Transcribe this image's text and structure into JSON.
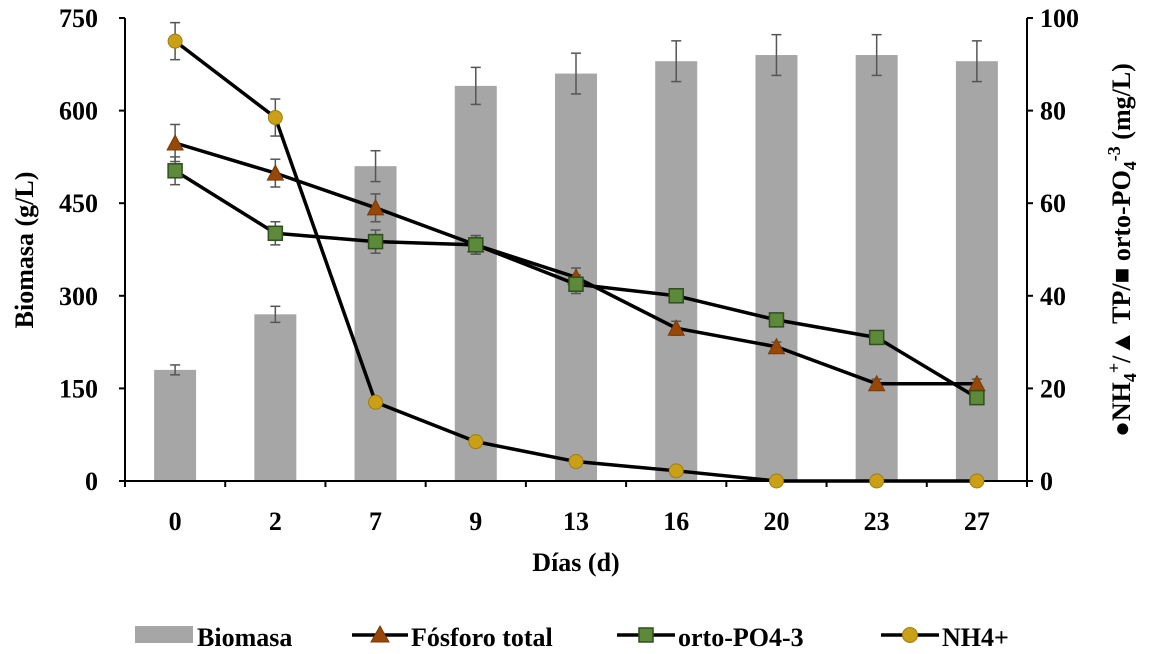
{
  "chart_data": {
    "type": "bar",
    "categories": [
      "0",
      "2",
      "7",
      "9",
      "13",
      "16",
      "20",
      "23",
      "27"
    ],
    "xlabel": "Días (d)",
    "ylabel": "Biomasa (g/L)",
    "y2label_parts": {
      "circle": "●",
      "nh": "NH",
      "sub4a": "4",
      "plus": "+",
      "slash1": "/",
      "triangle": "▲",
      "tp": " TP/",
      "square": "■",
      "ortho": " orto-PO",
      "sub4b": "4",
      "sup3": "-3",
      "unit": " (mg/L)"
    },
    "ylim": [
      0,
      750
    ],
    "yticks": [
      0,
      150,
      300,
      450,
      600,
      750
    ],
    "y2lim": [
      0,
      100
    ],
    "y2ticks": [
      0,
      20,
      40,
      60,
      80,
      100
    ],
    "grid": false,
    "legend_position": "bottom",
    "series": [
      {
        "name": "Biomasa",
        "type": "bar",
        "axis": "left",
        "color": "#a6a6a6",
        "values": [
          180,
          270,
          510,
          640,
          660,
          680,
          690,
          690,
          680
        ],
        "errors": [
          8,
          13,
          25,
          30,
          33,
          33,
          33,
          33,
          33
        ]
      },
      {
        "name": "Fósforo total",
        "type": "line",
        "axis": "right",
        "marker": "triangle",
        "color": "#000000",
        "marker_color": "#974706",
        "values": [
          73,
          66.5,
          59,
          51,
          44,
          33,
          29,
          21,
          21
        ],
        "errors": [
          4,
          3,
          3,
          2,
          2,
          1.5,
          1,
          1,
          1
        ]
      },
      {
        "name": "orto-PO4-3",
        "type": "line",
        "axis": "right",
        "marker": "square",
        "color": "#000000",
        "marker_color": "#5d8a3a",
        "values": [
          67,
          53.5,
          51.7,
          51,
          42.5,
          40,
          34.8,
          31,
          18
        ],
        "errors": [
          3,
          2.5,
          2.5,
          2,
          2,
          1.5,
          1,
          1,
          1
        ]
      },
      {
        "name": "NH4+",
        "type": "line",
        "axis": "right",
        "marker": "circle",
        "color": "#000000",
        "marker_color": "#c9a016",
        "values": [
          95,
          78.5,
          17,
          8.5,
          4.2,
          2.2,
          0,
          0,
          0
        ],
        "errors": [
          4,
          4,
          0,
          0,
          0,
          0,
          0,
          0,
          0
        ]
      }
    ]
  }
}
